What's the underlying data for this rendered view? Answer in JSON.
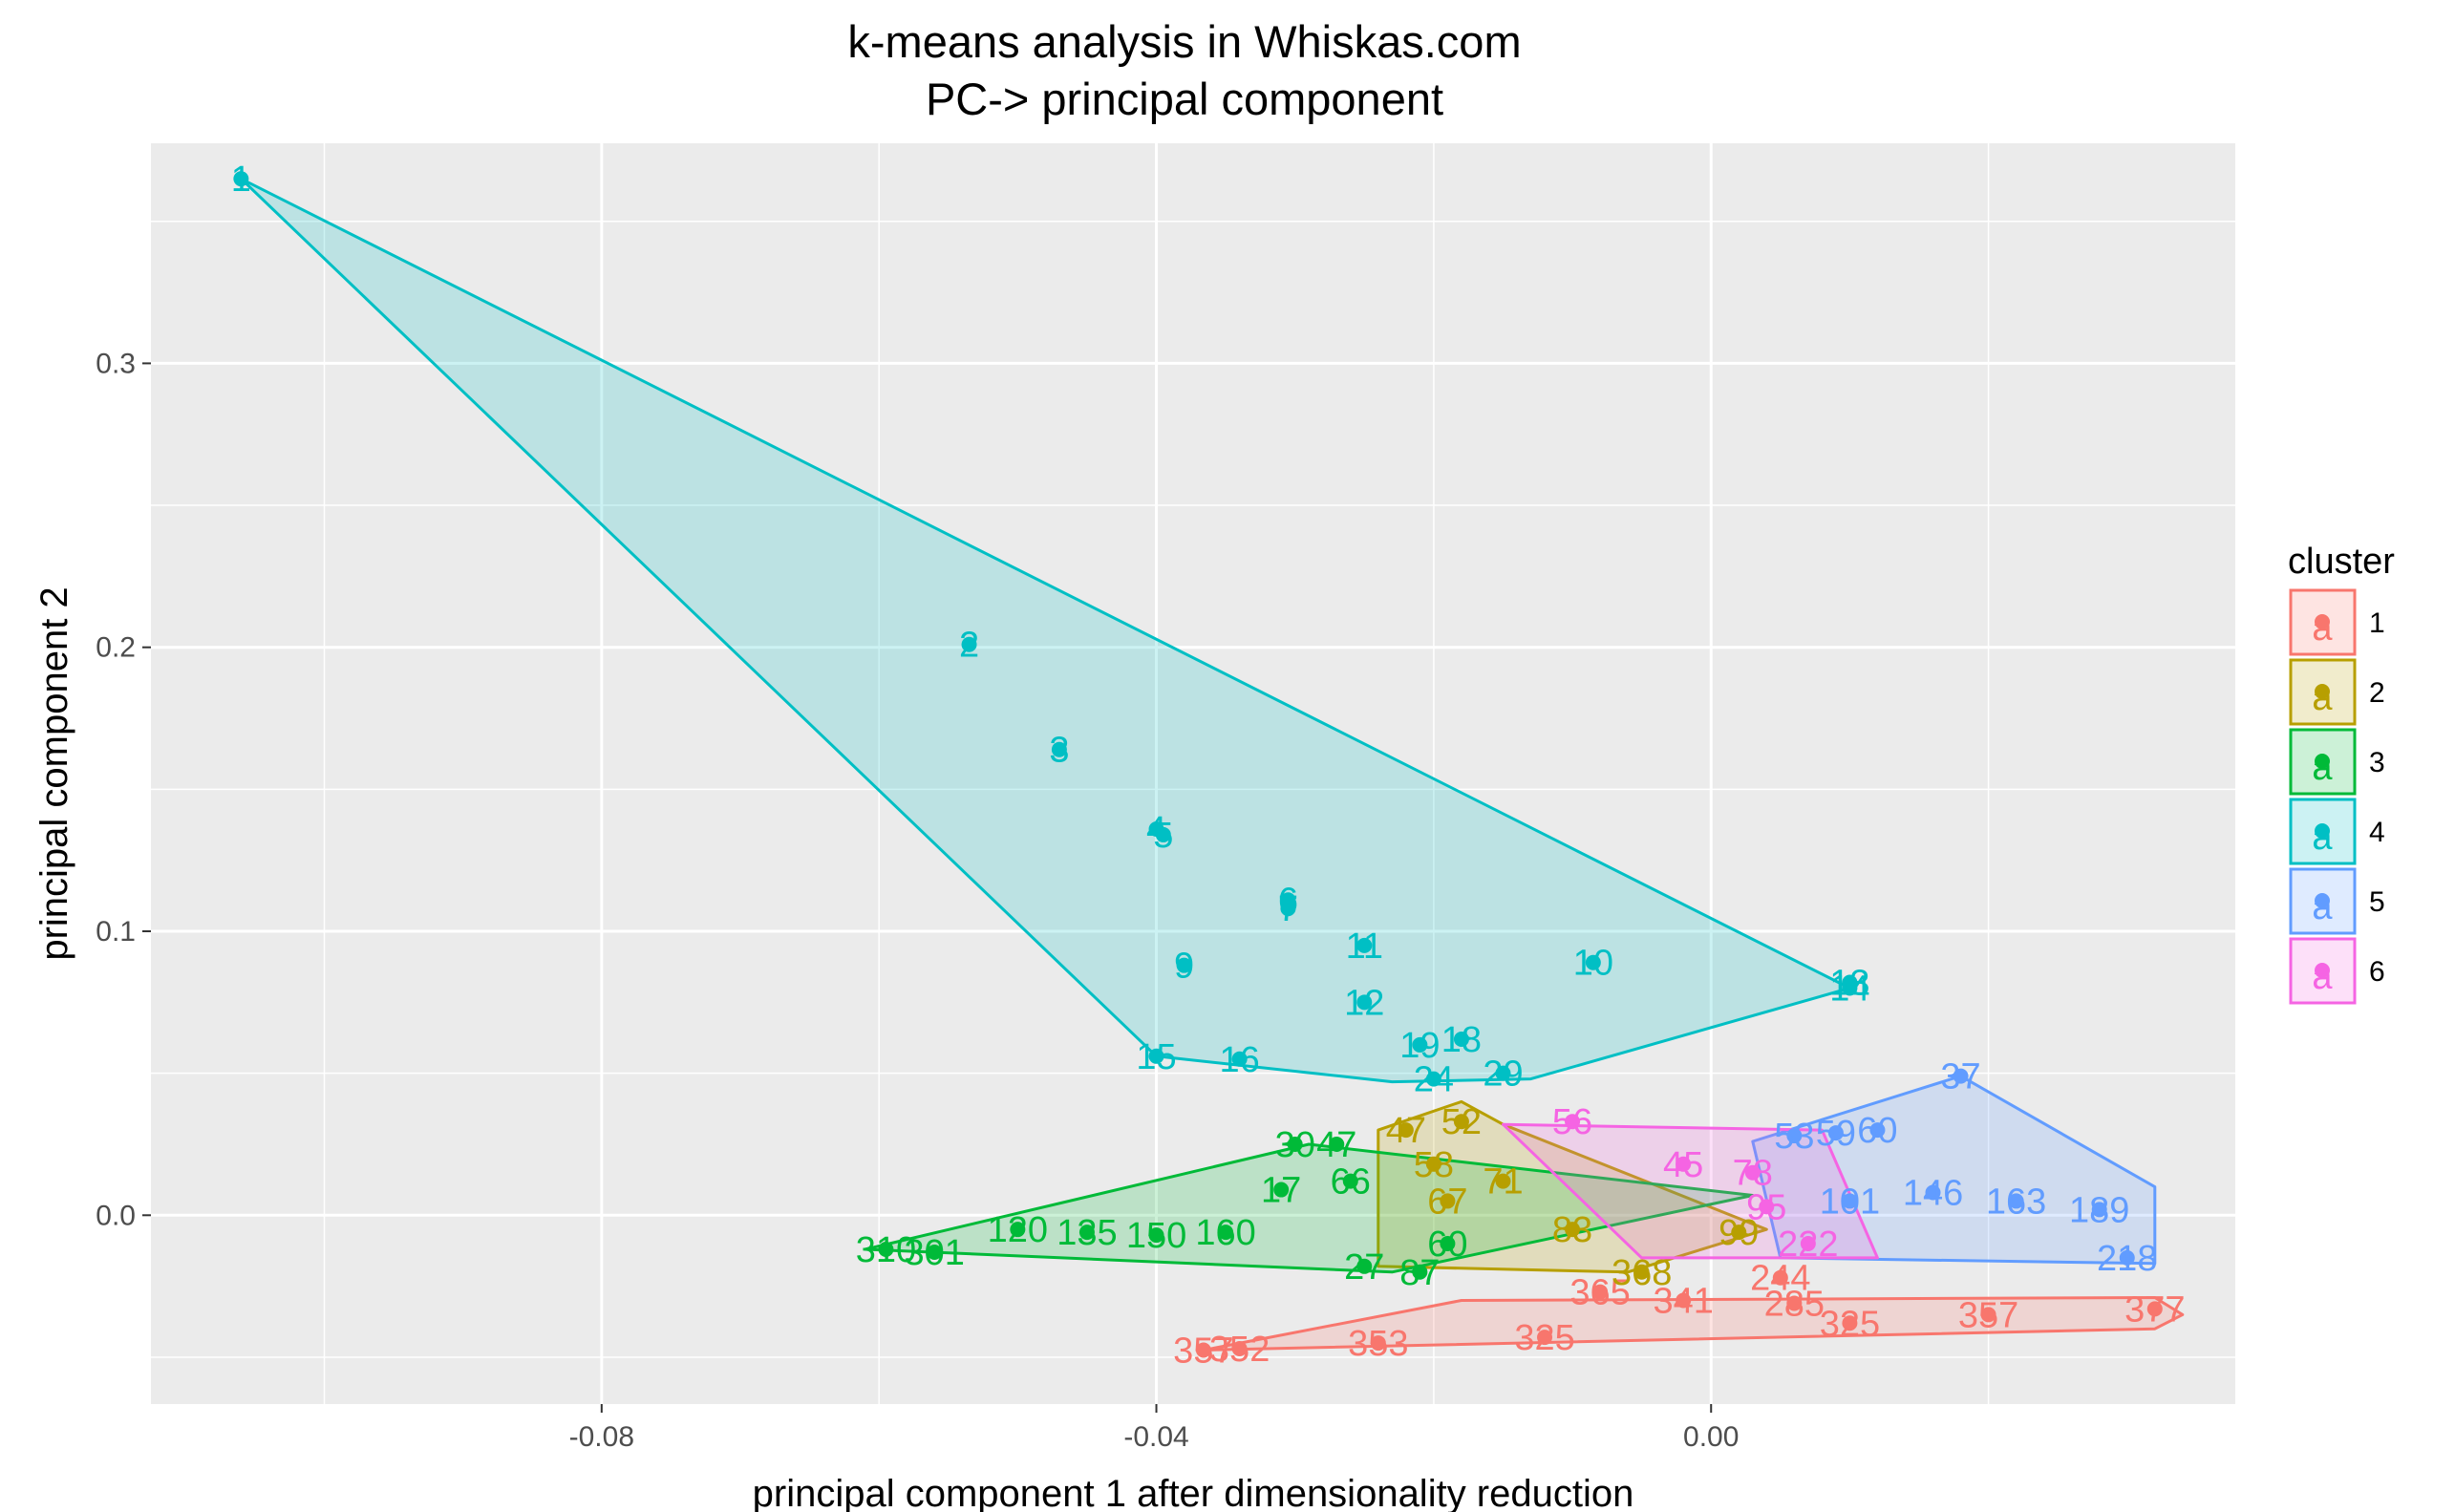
{
  "chart_data": {
    "type": "scatter",
    "title": "k-means analysis in Whiskas.com",
    "subtitle": "PC-> principal component",
    "xlabel": "principal component 1 after dimensionality reduction",
    "ylabel": "principal component 2",
    "xlim": [
      -0.1125,
      0.0378
    ],
    "ylim": [
      -0.0665,
      0.3775
    ],
    "x_ticks": [
      -0.08,
      -0.04,
      0.0
    ],
    "x_tick_labels": [
      "-0.08",
      "-0.04",
      "0.00"
    ],
    "y_ticks": [
      0.0,
      0.1,
      0.2,
      0.3
    ],
    "y_tick_labels": [
      "0.0",
      "0.1",
      "0.2",
      "0.3"
    ],
    "grid": true,
    "legend_position": "right",
    "legend": {
      "title": "cluster",
      "key_glyph": "a",
      "entries": [
        {
          "label": "1",
          "color": "#F8766D"
        },
        {
          "label": "2",
          "color": "#B79F00"
        },
        {
          "label": "3",
          "color": "#00BA38"
        },
        {
          "label": "4",
          "color": "#00BFC4"
        },
        {
          "label": "5",
          "color": "#619CFF"
        },
        {
          "label": "6",
          "color": "#F564E3"
        }
      ]
    },
    "series": [
      {
        "name": "1",
        "color": "#F8766D",
        "hull": [
          [
            -0.0366,
            -0.0475
          ],
          [
            -0.018,
            -0.03
          ],
          [
            0.032,
            -0.029
          ],
          [
            0.034,
            -0.035
          ],
          [
            0.032,
            -0.04
          ],
          [
            -0.0366,
            -0.0475
          ]
        ],
        "points": [
          {
            "x": -0.0366,
            "y": -0.0475,
            "label": "357"
          },
          {
            "x": -0.034,
            "y": -0.047,
            "label": "352"
          },
          {
            "x": -0.024,
            "y": -0.045,
            "label": "353"
          },
          {
            "x": -0.012,
            "y": -0.043,
            "label": "325"
          },
          {
            "x": -0.008,
            "y": -0.027,
            "label": "365"
          },
          {
            "x": -0.002,
            "y": -0.03,
            "label": "341"
          },
          {
            "x": 0.005,
            "y": -0.022,
            "label": "244"
          },
          {
            "x": 0.006,
            "y": -0.031,
            "label": "285"
          },
          {
            "x": 0.01,
            "y": -0.038,
            "label": "325"
          },
          {
            "x": 0.02,
            "y": -0.035,
            "label": "357"
          },
          {
            "x": 0.032,
            "y": -0.033,
            "label": "377"
          }
        ]
      },
      {
        "name": "2",
        "color": "#B79F00",
        "hull": [
          [
            -0.024,
            0.03
          ],
          [
            -0.018,
            0.04
          ],
          [
            -0.015,
            0.032
          ],
          [
            0.004,
            -0.005
          ],
          [
            -0.006,
            -0.02
          ],
          [
            -0.024,
            -0.018
          ],
          [
            -0.024,
            0.03
          ]
        ],
        "points": [
          {
            "x": -0.022,
            "y": 0.03,
            "label": "47"
          },
          {
            "x": -0.018,
            "y": 0.033,
            "label": "52"
          },
          {
            "x": -0.02,
            "y": 0.018,
            "label": "58"
          },
          {
            "x": -0.019,
            "y": 0.005,
            "label": "67"
          },
          {
            "x": -0.015,
            "y": 0.012,
            "label": "71"
          },
          {
            "x": -0.01,
            "y": -0.005,
            "label": "83"
          },
          {
            "x": -0.005,
            "y": -0.02,
            "label": "368"
          },
          {
            "x": 0.002,
            "y": -0.006,
            "label": "99"
          }
        ]
      },
      {
        "name": "3",
        "color": "#00BA38",
        "hull": [
          [
            -0.061,
            -0.012
          ],
          [
            -0.029,
            0.025
          ],
          [
            0.003,
            0.007
          ],
          [
            -0.023,
            -0.02
          ],
          [
            -0.061,
            -0.012
          ]
        ],
        "points": [
          {
            "x": -0.0595,
            "y": -0.012,
            "label": "310"
          },
          {
            "x": -0.056,
            "y": -0.013,
            "label": "301"
          },
          {
            "x": -0.05,
            "y": -0.005,
            "label": "120"
          },
          {
            "x": -0.045,
            "y": -0.006,
            "label": "135"
          },
          {
            "x": -0.04,
            "y": -0.007,
            "label": "150"
          },
          {
            "x": -0.035,
            "y": -0.006,
            "label": "160"
          },
          {
            "x": -0.03,
            "y": 0.025,
            "label": "30"
          },
          {
            "x": -0.027,
            "y": 0.025,
            "label": "47"
          },
          {
            "x": -0.031,
            "y": 0.009,
            "label": "17"
          },
          {
            "x": -0.026,
            "y": 0.012,
            "label": "66"
          },
          {
            "x": -0.025,
            "y": -0.018,
            "label": "27"
          },
          {
            "x": -0.021,
            "y": -0.02,
            "label": "87"
          },
          {
            "x": -0.019,
            "y": -0.01,
            "label": "60"
          }
        ]
      },
      {
        "name": "4",
        "color": "#00BFC4",
        "hull": [
          [
            -0.106,
            0.365
          ],
          [
            0.01,
            0.08
          ],
          [
            -0.013,
            0.048
          ],
          [
            -0.023,
            0.047
          ],
          [
            -0.04,
            0.056
          ],
          [
            -0.106,
            0.365
          ]
        ],
        "points": [
          {
            "x": -0.106,
            "y": 0.365,
            "label": "1"
          },
          {
            "x": -0.0535,
            "y": 0.201,
            "label": "2"
          },
          {
            "x": -0.047,
            "y": 0.164,
            "label": "3"
          },
          {
            "x": -0.04,
            "y": 0.136,
            "label": "4"
          },
          {
            "x": -0.0395,
            "y": 0.134,
            "label": "5"
          },
          {
            "x": -0.0305,
            "y": 0.111,
            "label": "6"
          },
          {
            "x": -0.0305,
            "y": 0.108,
            "label": "7"
          },
          {
            "x": -0.038,
            "y": 0.088,
            "label": "9"
          },
          {
            "x": -0.0085,
            "y": 0.089,
            "label": "10"
          },
          {
            "x": -0.025,
            "y": 0.095,
            "label": "11"
          },
          {
            "x": -0.025,
            "y": 0.075,
            "label": "12"
          },
          {
            "x": 0.01,
            "y": 0.082,
            "label": "13"
          },
          {
            "x": 0.01,
            "y": 0.08,
            "label": "14"
          },
          {
            "x": -0.04,
            "y": 0.056,
            "label": "15"
          },
          {
            "x": -0.034,
            "y": 0.055,
            "label": "16"
          },
          {
            "x": -0.021,
            "y": 0.06,
            "label": "19"
          },
          {
            "x": -0.018,
            "y": 0.062,
            "label": "18"
          },
          {
            "x": -0.02,
            "y": 0.048,
            "label": "24"
          },
          {
            "x": -0.015,
            "y": 0.05,
            "label": "29"
          }
        ]
      },
      {
        "name": "5",
        "color": "#619CFF",
        "hull": [
          [
            0.003,
            0.026
          ],
          [
            0.018,
            0.049
          ],
          [
            0.032,
            0.01
          ],
          [
            0.032,
            -0.017
          ],
          [
            0.005,
            -0.015
          ],
          [
            0.003,
            0.026
          ]
        ],
        "points": [
          {
            "x": 0.006,
            "y": 0.028,
            "label": "53"
          },
          {
            "x": 0.009,
            "y": 0.029,
            "label": "59"
          },
          {
            "x": 0.012,
            "y": 0.03,
            "label": "60"
          },
          {
            "x": 0.018,
            "y": 0.049,
            "label": "37"
          },
          {
            "x": 0.01,
            "y": 0.005,
            "label": "101"
          },
          {
            "x": 0.016,
            "y": 0.008,
            "label": "146"
          },
          {
            "x": 0.022,
            "y": 0.005,
            "label": "163"
          },
          {
            "x": 0.028,
            "y": 0.002,
            "label": "189"
          },
          {
            "x": 0.03,
            "y": -0.015,
            "label": "218"
          }
        ]
      },
      {
        "name": "6",
        "color": "#F564E3",
        "hull": [
          [
            -0.015,
            0.032
          ],
          [
            0.008,
            0.03
          ],
          [
            0.012,
            -0.015
          ],
          [
            -0.005,
            -0.015
          ],
          [
            -0.015,
            0.032
          ]
        ],
        "points": [
          {
            "x": -0.01,
            "y": 0.033,
            "label": "56"
          },
          {
            "x": -0.002,
            "y": 0.018,
            "label": "45"
          },
          {
            "x": 0.003,
            "y": 0.015,
            "label": "78"
          },
          {
            "x": 0.007,
            "y": -0.01,
            "label": "222"
          },
          {
            "x": 0.004,
            "y": 0.003,
            "label": "95"
          }
        ]
      }
    ]
  }
}
